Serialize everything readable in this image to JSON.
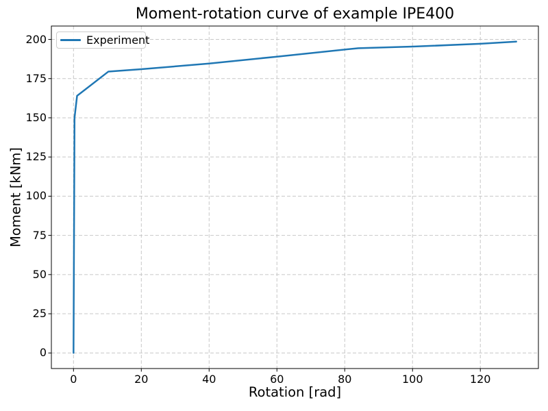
{
  "chart_data": {
    "type": "line",
    "title": "Moment-rotation curve of example IPE400",
    "xlabel": "Rotation [rad]",
    "ylabel": "Moment [kNm]",
    "xlim": [
      -6.53,
      137.13
    ],
    "ylim": [
      -9.93,
      208.53
    ],
    "x_ticks": [
      0,
      20,
      40,
      60,
      80,
      100,
      120
    ],
    "y_ticks": [
      0,
      25,
      50,
      75,
      100,
      125,
      150,
      175,
      200
    ],
    "grid": true,
    "grid_style": "dashed",
    "legend_position": "upper-left",
    "series": [
      {
        "name": "Experiment",
        "color": "#1f77b4",
        "line_width": 2.5,
        "points": [
          [
            0,
            0
          ],
          [
            0.3,
            150
          ],
          [
            1.05,
            164
          ],
          [
            10.3,
            179.5
          ],
          [
            20,
            181
          ],
          [
            40,
            184.6
          ],
          [
            60,
            189
          ],
          [
            84,
            194.4
          ],
          [
            100,
            195.4
          ],
          [
            120,
            197.2
          ],
          [
            130.6,
            198.6
          ]
        ]
      }
    ]
  },
  "colors": {
    "line": "#1f77b4",
    "grid": "#c7c7c7",
    "spine": "#000000",
    "background": "#ffffff",
    "legend_border": "#cccccc"
  }
}
